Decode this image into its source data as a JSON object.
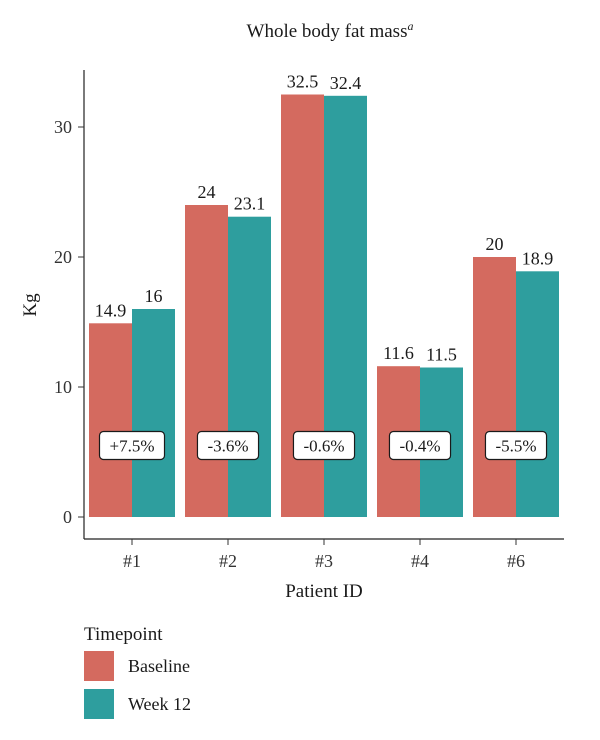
{
  "chart_data": {
    "type": "bar",
    "title": "Whole body fat mass",
    "title_superscript": "a",
    "xlabel": "Patient ID",
    "ylabel": "Kg",
    "categories": [
      "#1",
      "#2",
      "#3",
      "#4",
      "#6"
    ],
    "series": [
      {
        "name": "Baseline",
        "color": "#d46a5f",
        "values": [
          14.9,
          24,
          32.5,
          11.6,
          20
        ]
      },
      {
        "name": "Week 12",
        "color": "#2e9e9e",
        "values": [
          16,
          23.1,
          32.4,
          11.5,
          18.9
        ]
      }
    ],
    "value_labels": [
      [
        "14.9",
        "24",
        "32.5",
        "11.6",
        "20"
      ],
      [
        "16",
        "23.1",
        "32.4",
        "11.5",
        "18.9"
      ]
    ],
    "change_labels": [
      "+7.5%",
      "-3.6%",
      "-0.6%",
      "-0.4%",
      "-5.5%"
    ],
    "change_label_y": 5.5,
    "yticks": [
      0,
      10,
      20,
      30
    ],
    "ylim": [
      -1.7,
      34.7
    ],
    "grid": false,
    "legend": {
      "title": "Timepoint",
      "position": "bottom-left"
    }
  }
}
